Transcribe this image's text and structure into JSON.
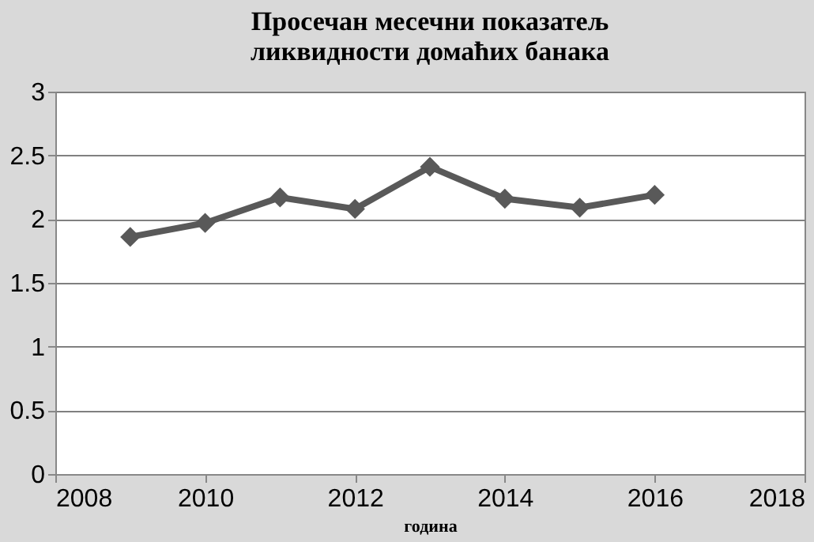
{
  "chart_data": {
    "type": "line",
    "title": [
      "Просечан месечни показатељ",
      "ликвидности домаћих банака"
    ],
    "xlabel": "година",
    "x": [
      2009,
      2010,
      2011,
      2012,
      2013,
      2014,
      2015,
      2016
    ],
    "series": [
      {
        "color": "#595959",
        "values": [
          1.86,
          1.97,
          2.17,
          2.08,
          2.41,
          2.16,
          2.09,
          2.19
        ]
      }
    ],
    "xlim": [
      2008,
      2018
    ],
    "xticks": [
      2008,
      2010,
      2012,
      2014,
      2016,
      2018
    ],
    "ylim": [
      0,
      3
    ],
    "yticks": [
      0,
      0.5,
      1,
      1.5,
      2,
      2.5,
      3
    ],
    "grid": "y",
    "marker": "diamond",
    "line_style": "solid"
  }
}
